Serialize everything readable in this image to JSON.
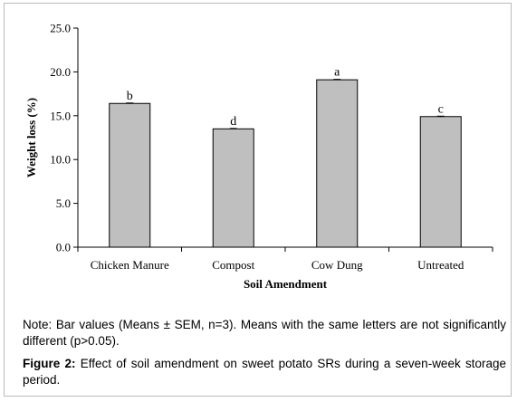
{
  "chart_data": {
    "type": "bar",
    "categories": [
      "Chicken Manure",
      "Compost",
      "Cow Dung",
      "Untreated"
    ],
    "values": [
      16.4,
      13.5,
      19.1,
      14.9
    ],
    "error_values": [
      0.05,
      0.05,
      0.05,
      0.05
    ],
    "significance_letters": [
      "b",
      "d",
      "a",
      "c"
    ],
    "xlabel": "Soil Amendment",
    "ylabel": "Weight loss (%)",
    "ylim": [
      0,
      25
    ],
    "yticks": [
      "0.0",
      "5.0",
      "10.0",
      "15.0",
      "20.0",
      "25.0"
    ],
    "grid": false,
    "legend": "none",
    "colors": {
      "bar_fill": "#bfbfbf",
      "bar_stroke": "#000000"
    }
  },
  "note": "Note: Bar values (Means ± SEM, n=3). Means with the same letters are not significantly different (p>0.05).",
  "caption": {
    "label": "Figure 2:",
    "text": "Effect of soil amendment on sweet potato SRs during a seven-week storage period."
  }
}
